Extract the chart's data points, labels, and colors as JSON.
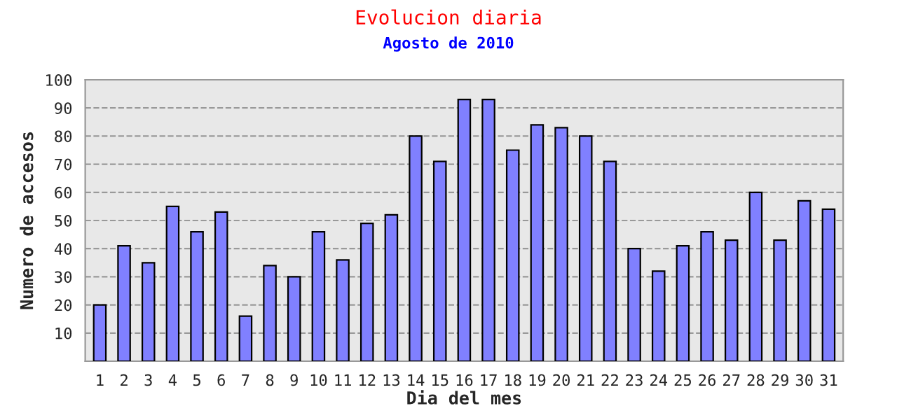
{
  "chart_data": {
    "type": "bar",
    "title": "Evolucion diaria",
    "subtitle": "Agosto de 2010",
    "xlabel": "Dia del mes",
    "ylabel": "Numero de accesos",
    "categories": [
      "1",
      "2",
      "3",
      "4",
      "5",
      "6",
      "7",
      "8",
      "9",
      "10",
      "11",
      "12",
      "13",
      "14",
      "15",
      "16",
      "17",
      "18",
      "19",
      "20",
      "21",
      "22",
      "23",
      "24",
      "25",
      "26",
      "27",
      "28",
      "29",
      "30",
      "31"
    ],
    "values": [
      20,
      41,
      35,
      55,
      46,
      53,
      16,
      34,
      30,
      46,
      36,
      49,
      52,
      80,
      71,
      93,
      93,
      75,
      84,
      83,
      80,
      71,
      40,
      32,
      41,
      46,
      43,
      60,
      43,
      57,
      54
    ],
    "color": "#8080ff",
    "ylim": [
      0,
      100
    ],
    "yticks": [
      10,
      20,
      30,
      40,
      50,
      60,
      70,
      80,
      90,
      100
    ],
    "grid": "y"
  }
}
